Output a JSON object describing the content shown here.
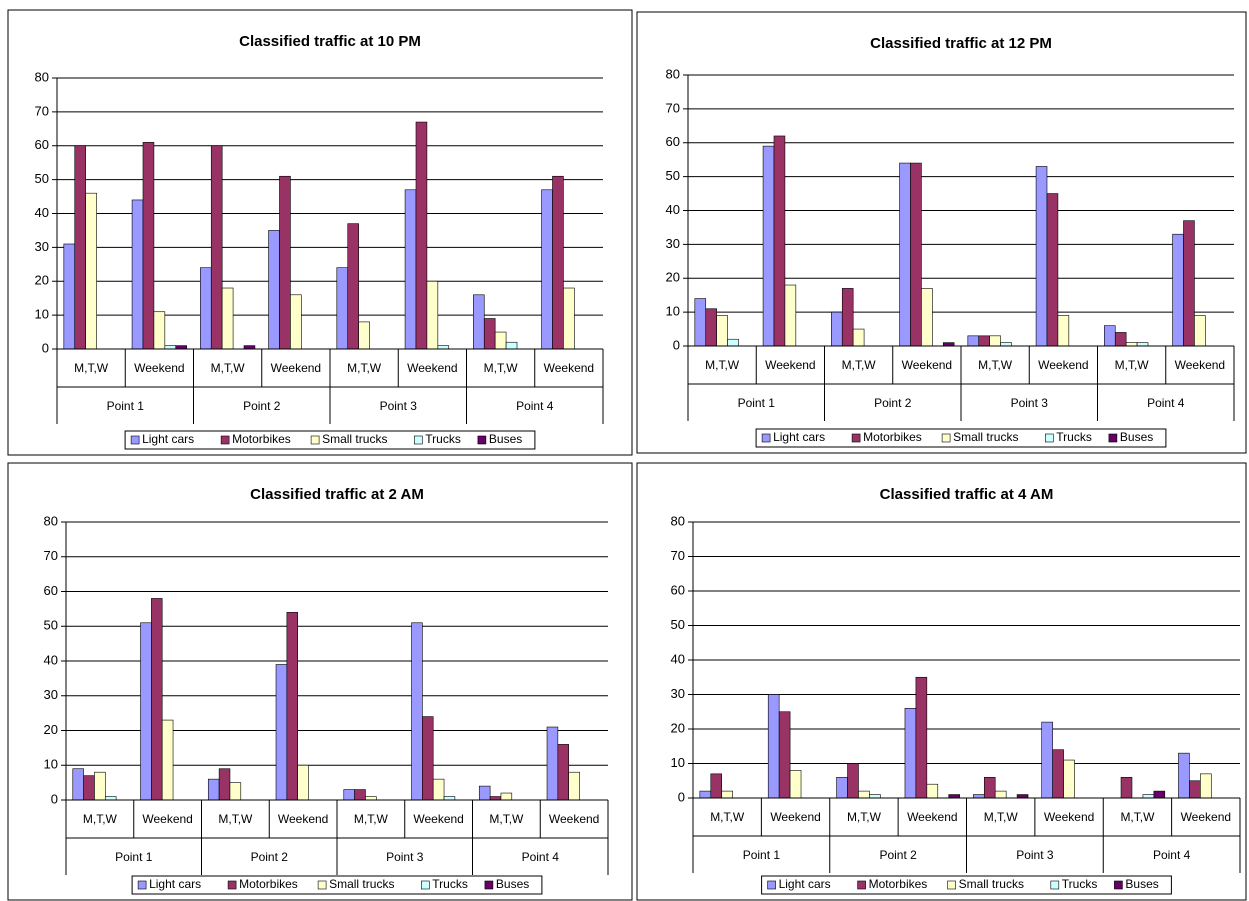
{
  "chart_data": [
    {
      "type": "bar",
      "title": "Classified traffic at 10 PM",
      "groups": [
        "Point 1",
        "Point 2",
        "Point 3",
        "Point 4"
      ],
      "categories": [
        "M,T,W",
        "Weekend",
        "M,T,W",
        "Weekend",
        "M,T,W",
        "Weekend",
        "M,T,W",
        "Weekend"
      ],
      "series": [
        {
          "name": "Light cars",
          "color": "#9999ff",
          "values": [
            31,
            44,
            24,
            35,
            24,
            47,
            16,
            47
          ]
        },
        {
          "name": "Motorbikes",
          "color": "#993366",
          "values": [
            60,
            61,
            60,
            51,
            37,
            67,
            9,
            51
          ]
        },
        {
          "name": "Small trucks",
          "color": "#ffffcc",
          "values": [
            46,
            11,
            18,
            16,
            8,
            20,
            5,
            18
          ]
        },
        {
          "name": "Trucks",
          "color": "#ccffff",
          "values": [
            0,
            1,
            0,
            0,
            0,
            1,
            2,
            0
          ]
        },
        {
          "name": "Buses",
          "color": "#660066",
          "values": [
            0,
            1,
            1,
            0,
            0,
            0,
            0,
            0
          ]
        }
      ],
      "ylim": [
        0,
        80
      ],
      "yticks": [
        0,
        10,
        20,
        30,
        40,
        50,
        60,
        70,
        80
      ],
      "grid": true,
      "legend": "bottom"
    },
    {
      "type": "bar",
      "title": "Classified traffic at 12 PM",
      "groups": [
        "Point 1",
        "Point 2",
        "Point 3",
        "Point 4"
      ],
      "categories": [
        "M,T,W",
        "Weekend",
        "M,T,W",
        "Weekend",
        "M,T,W",
        "Weekend",
        "M,T,W",
        "Weekend"
      ],
      "series": [
        {
          "name": "Light cars",
          "color": "#9999ff",
          "values": [
            14,
            59,
            10,
            54,
            3,
            53,
            6,
            33
          ]
        },
        {
          "name": "Motorbikes",
          "color": "#993366",
          "values": [
            11,
            62,
            17,
            54,
            3,
            45,
            4,
            37
          ]
        },
        {
          "name": "Small trucks",
          "color": "#ffffcc",
          "values": [
            9,
            18,
            5,
            17,
            3,
            9,
            1,
            9
          ]
        },
        {
          "name": "Trucks",
          "color": "#ccffff",
          "values": [
            2,
            0,
            0,
            0,
            1,
            0,
            1,
            0
          ]
        },
        {
          "name": "Buses",
          "color": "#660066",
          "values": [
            0,
            0,
            0,
            1,
            0,
            0,
            0,
            0
          ]
        }
      ],
      "ylim": [
        0,
        80
      ],
      "yticks": [
        0,
        10,
        20,
        30,
        40,
        50,
        60,
        70,
        80
      ],
      "grid": true,
      "legend": "bottom"
    },
    {
      "type": "bar",
      "title": "Classified traffic at 2 AM",
      "groups": [
        "Point 1",
        "Point 2",
        "Point 3",
        "Point 4"
      ],
      "categories": [
        "M,T,W",
        "Weekend",
        "M,T,W",
        "Weekend",
        "M,T,W",
        "Weekend",
        "M,T,W",
        "Weekend"
      ],
      "series": [
        {
          "name": "Light cars",
          "color": "#9999ff",
          "values": [
            9,
            51,
            6,
            39,
            3,
            51,
            4,
            21
          ]
        },
        {
          "name": "Motorbikes",
          "color": "#993366",
          "values": [
            7,
            58,
            9,
            54,
            3,
            24,
            1,
            16
          ]
        },
        {
          "name": "Small trucks",
          "color": "#ffffcc",
          "values": [
            8,
            23,
            5,
            10,
            1,
            6,
            2,
            8
          ]
        },
        {
          "name": "Trucks",
          "color": "#ccffff",
          "values": [
            1,
            0,
            0,
            0,
            0,
            1,
            0,
            0
          ]
        },
        {
          "name": "Buses",
          "color": "#660066",
          "values": [
            0,
            0,
            0,
            0,
            0,
            0,
            0,
            0
          ]
        }
      ],
      "ylim": [
        0,
        80
      ],
      "yticks": [
        0,
        10,
        20,
        30,
        40,
        50,
        60,
        70,
        80
      ],
      "grid": true,
      "legend": "bottom"
    },
    {
      "type": "bar",
      "title": "Classified traffic at 4 AM",
      "groups": [
        "Point 1",
        "Point 2",
        "Point 3",
        "Point 4"
      ],
      "categories": [
        "M,T,W",
        "Weekend",
        "M,T,W",
        "Weekend",
        "M,T,W",
        "Weekend",
        "M,T,W",
        "Weekend"
      ],
      "series": [
        {
          "name": "Light cars",
          "color": "#9999ff",
          "values": [
            2,
            30,
            6,
            26,
            1,
            22,
            0,
            13
          ]
        },
        {
          "name": "Motorbikes",
          "color": "#993366",
          "values": [
            7,
            25,
            10,
            35,
            6,
            14,
            6,
            5
          ]
        },
        {
          "name": "Small trucks",
          "color": "#ffffcc",
          "values": [
            2,
            8,
            2,
            4,
            2,
            11,
            0,
            7
          ]
        },
        {
          "name": "Trucks",
          "color": "#ccffff",
          "values": [
            0,
            0,
            1,
            0,
            0,
            0,
            1,
            0
          ]
        },
        {
          "name": "Buses",
          "color": "#660066",
          "values": [
            0,
            0,
            0,
            1,
            1,
            0,
            2,
            0
          ]
        }
      ],
      "ylim": [
        0,
        80
      ],
      "yticks": [
        0,
        10,
        20,
        30,
        40,
        50,
        60,
        70,
        80
      ],
      "grid": true,
      "legend": "bottom"
    }
  ]
}
